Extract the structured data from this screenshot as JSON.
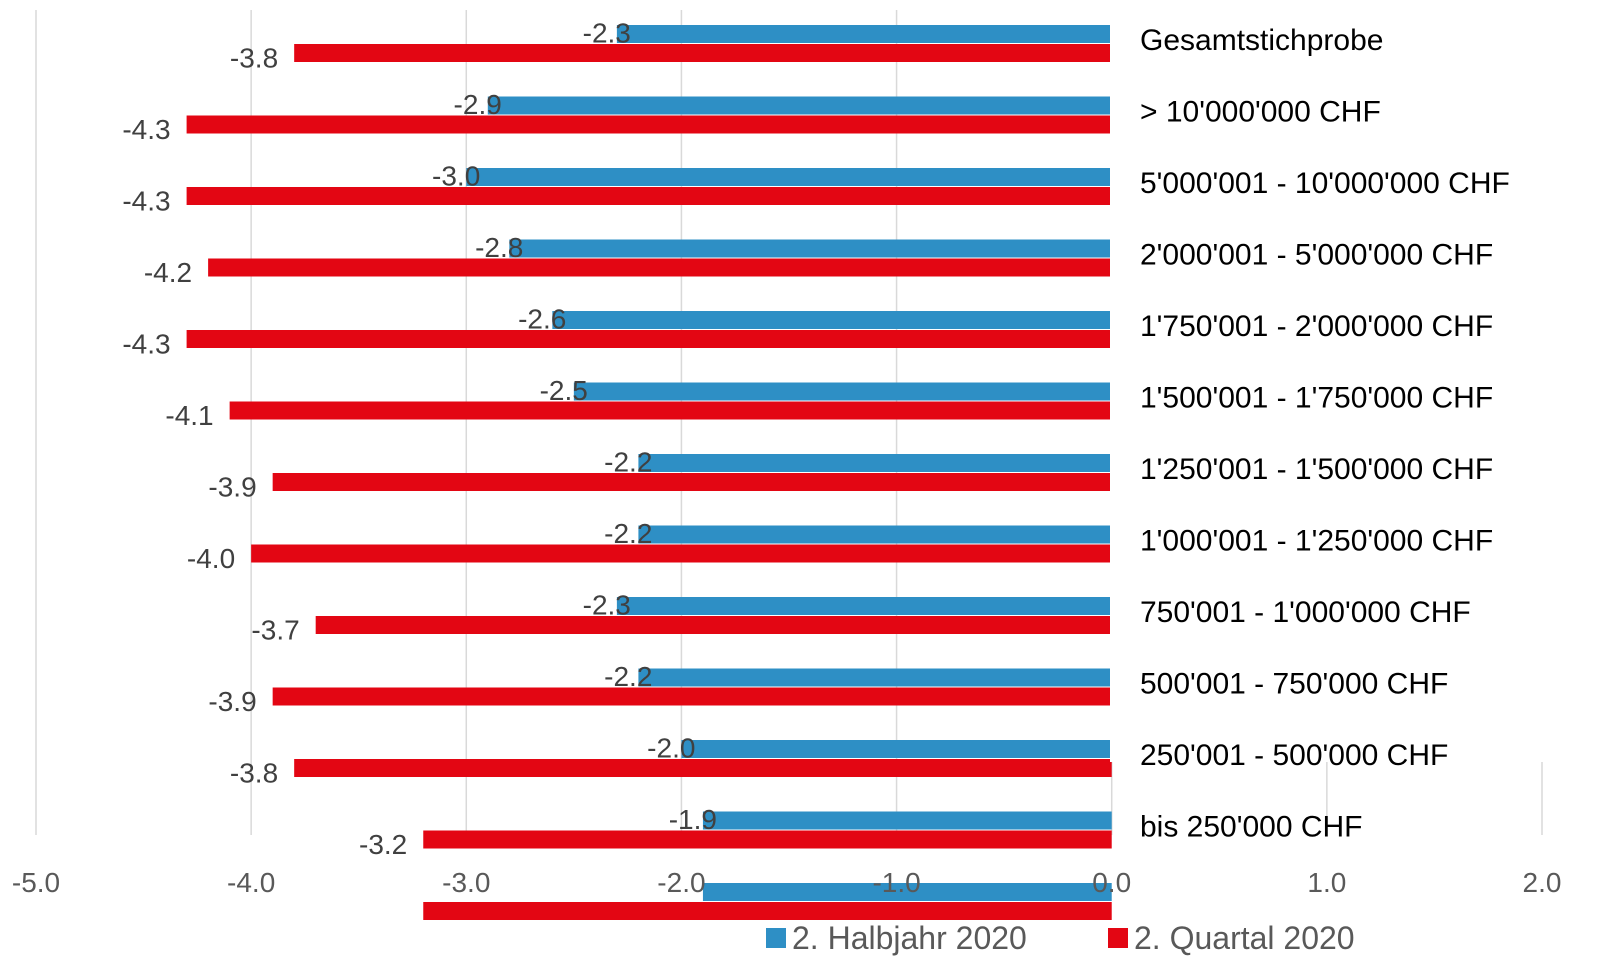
{
  "chart_data": {
    "type": "bar",
    "orientation": "horizontal",
    "categories": [
      "Gesamtstichprobe",
      "> 10'000'000 CHF",
      "5'000'001 - 10'000'000 CHF",
      "2'000'001 - 5'000'000 CHF",
      "1'750'001 - 2'000'000 CHF",
      "1'500'001 - 1'750'000 CHF",
      "1'250'001 - 1'500'000 CHF",
      "1'000'001 - 1'250'000 CHF",
      "750'001 - 1'000'000 CHF",
      "500'001 - 750'000 CHF",
      "250'001 - 500'000 CHF",
      "bis 250'000 CHF",
      ""
    ],
    "series": [
      {
        "name": "2. Halbjahr 2020",
        "color": "#2E8FC5",
        "values": [
          -2.3,
          -2.9,
          -3.0,
          -2.8,
          -2.6,
          -2.5,
          -2.2,
          -2.2,
          -2.3,
          -2.2,
          -2.0,
          -1.9,
          -1.9
        ],
        "labels": [
          "-2.3",
          "-2.9",
          "-3.0",
          "-2.8",
          "-2.6",
          "-2.5",
          "-2.2",
          "-2.2",
          "-2.3",
          "-2.2",
          "-2.0",
          "-1.9",
          ""
        ]
      },
      {
        "name": "2. Quartal 2020",
        "color": "#E30613",
        "values": [
          -3.8,
          -4.3,
          -4.3,
          -4.2,
          -4.3,
          -4.1,
          -3.9,
          -4.0,
          -3.7,
          -3.9,
          -3.8,
          -3.2,
          -3.2
        ],
        "labels": [
          "-3.8",
          "-4.3",
          "-4.3",
          "-4.2",
          "-4.3",
          "-4.1",
          "-3.9",
          "-4.0",
          "-3.7",
          "-3.9",
          "-3.8",
          "-3.2",
          ""
        ]
      }
    ],
    "xlim": [
      -5.0,
      2.0
    ],
    "xticks": [
      "-5.0",
      "-4.0",
      "-3.0",
      "-2.0",
      "-1.0",
      "0.0",
      "1.0",
      "2.0"
    ],
    "grid": true,
    "legend_position": "bottom-right",
    "title": "",
    "xlabel": "",
    "ylabel": ""
  }
}
